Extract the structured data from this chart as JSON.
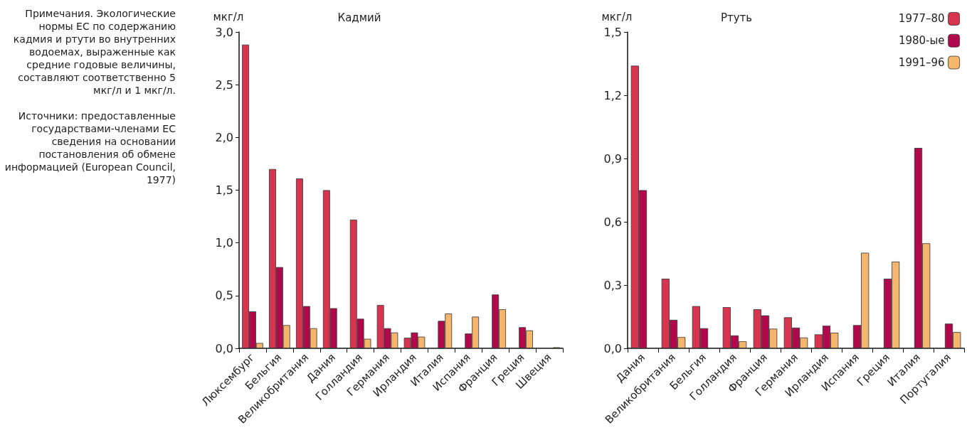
{
  "chart_data": [
    {
      "type": "bar",
      "title": "Кадмий",
      "ylabel": "мкг/л",
      "categories": [
        "Люксембург",
        "Бельгия",
        "Великобритания",
        "Дания",
        "Голландия",
        "Германия",
        "Ирландия",
        "Италия",
        "Испания",
        "Франция",
        "Греция",
        "Швеция"
      ],
      "series": [
        {
          "color": "#d9344f",
          "values": [
            2.88,
            1.7,
            1.61,
            1.5,
            1.22,
            0.41,
            0.1,
            null,
            null,
            null,
            null,
            null
          ]
        },
        {
          "color": "#b0084a",
          "values": [
            0.35,
            0.77,
            0.4,
            0.38,
            0.28,
            0.19,
            0.15,
            0.26,
            0.14,
            0.51,
            0.2,
            null
          ]
        },
        {
          "color": "#f5b56b",
          "values": [
            0.05,
            0.22,
            0.19,
            null,
            0.09,
            0.15,
            0.11,
            0.33,
            0.3,
            0.37,
            0.17,
            0.01
          ]
        }
      ],
      "ylim": [
        0,
        3
      ],
      "yticks": [
        {
          "value": 0,
          "label": "0,0"
        },
        {
          "value": 0.5,
          "label": "0,5"
        },
        {
          "value": 1,
          "label": "1,0"
        },
        {
          "value": 1.5,
          "label": "1,5"
        },
        {
          "value": 2,
          "label": "2,0"
        },
        {
          "value": 2.5,
          "label": "2,5"
        },
        {
          "value": 3,
          "label": "3,0"
        }
      ],
      "grid": false,
      "legend": false,
      "annotations": [
        "Примечания. Экологические нормы ЕС по содержанию кадмия и ртути во внутренних водоемах, выраженные как средние годовые величины, составляют соответственно 5 мкг/л и 1 мкг/л.",
        "Источники: предоставленные государствами-членами ЕС сведения на основании постановления об обмене информацией (European Council, 1977)"
      ]
    },
    {
      "type": "bar",
      "title": "Ртуть",
      "ylabel": "мкг/л",
      "categories": [
        "Дания",
        "Великобритания",
        "Бельгия",
        "Голландия",
        "Франция",
        "Германия",
        "Ирландия",
        "Испания",
        "Греция",
        "Италия",
        "Португалия"
      ],
      "series": [
        {
          "name": "1977–80",
          "color": "#d9344f",
          "values": [
            1.34,
            0.33,
            0.2,
            0.195,
            0.185,
            0.147,
            0.066,
            null,
            null,
            null,
            null
          ]
        },
        {
          "name": "1980-ые",
          "color": "#b0084a",
          "values": [
            0.75,
            0.135,
            0.095,
            0.061,
            0.156,
            0.098,
            0.107,
            0.11,
            0.33,
            0.95,
            0.117
          ]
        },
        {
          "name": "1991–96",
          "color": "#f5b56b",
          "values": [
            null,
            0.053,
            null,
            0.033,
            0.093,
            0.051,
            0.074,
            0.453,
            0.411,
            0.498,
            0.077
          ]
        }
      ],
      "ylim": [
        0,
        1.5
      ],
      "yticks": [
        {
          "value": 0,
          "label": "0,0"
        },
        {
          "value": 0.3,
          "label": "0,3"
        },
        {
          "value": 0.6,
          "label": "0,6"
        },
        {
          "value": 0.9,
          "label": "0,9"
        },
        {
          "value": 1.2,
          "label": "1,2"
        },
        {
          "value": 1.5,
          "label": "1,5"
        }
      ],
      "grid": false,
      "legend": "top right"
    }
  ]
}
